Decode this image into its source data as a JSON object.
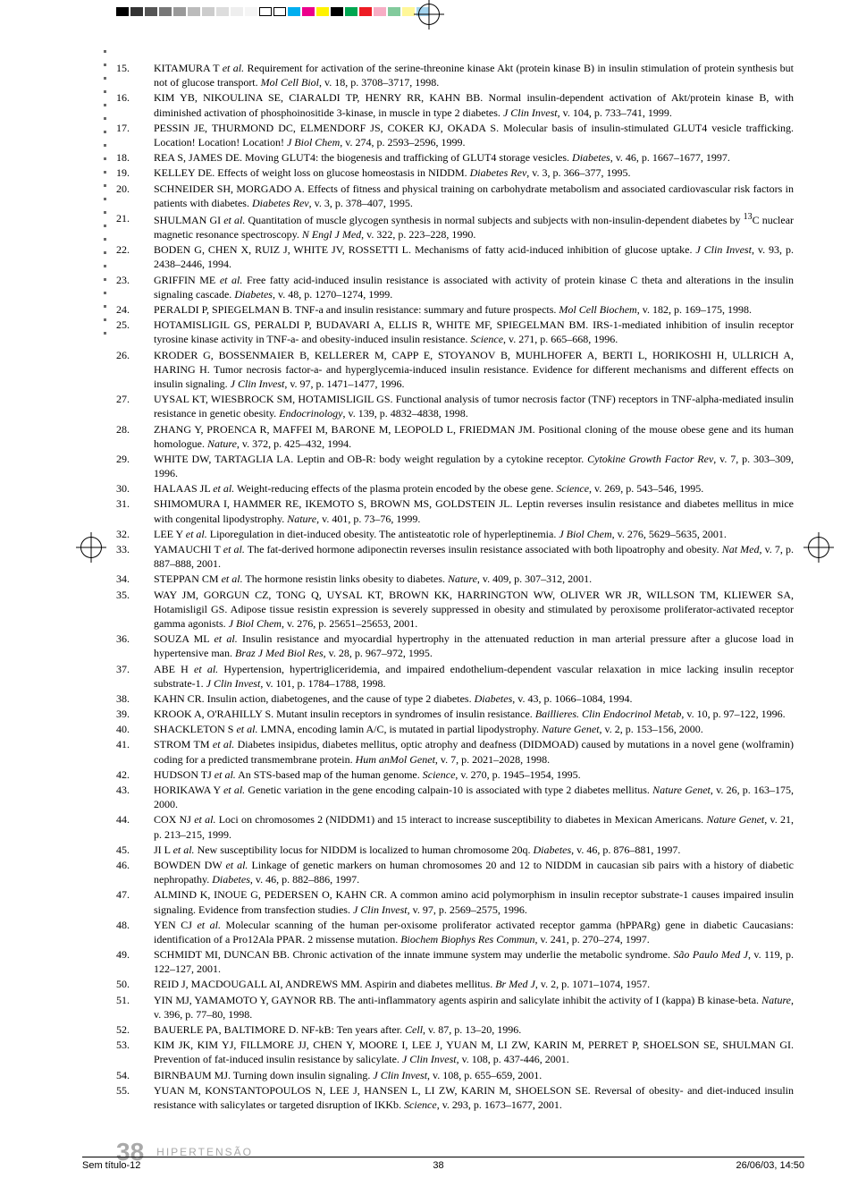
{
  "crop_swatches": [
    "#000000",
    "#333333",
    "#555555",
    "#777777",
    "#999999",
    "#bbbbbb",
    "#cccccc",
    "#dddddd",
    "#eeeeee",
    "#f5f5f5",
    "#ffffff",
    "#ffffff",
    "#00aeef",
    "#ec008c",
    "#fff200",
    "#000000",
    "#00a651",
    "#ed1c24",
    "#f7adc4",
    "#82ca9c",
    "#fff799",
    "#a3d4ef"
  ],
  "left_dot_count": 22,
  "references": [
    {
      "n": "15.",
      "html": "KITAMURA T <em>et al.</em> Requirement for activation of the serine-threonine kinase Akt (protein kinase B) in insulin stimulation of protein synthesis but not of glucose transport. <em>Mol Cell Biol</em>, v. 18, p. 3708–3717, 1998.",
      "indent": true
    },
    {
      "n": "16.",
      "html": "KIM YB, NIKOULINA SE, CIARALDI TP, HENRY RR, KAHN BB. Normal insulin-dependent activation of Akt/protein kinase B, with diminished activation of phosphoinositide 3-kinase, in muscle in type 2 diabetes. <em>J Clin Invest</em>, v. 104, p. 733–741, 1999.",
      "indent": true
    },
    {
      "n": "17.",
      "html": "PESSIN JE, THURMOND DC, ELMENDORF JS, COKER KJ, OKADA S. Molecular basis of insulin-stimulated GLUT4 vesicle trafficking. Location! Location! Location! <em>J Biol Chem</em>, v. 274, p. 2593–2596, 1999.",
      "indent": true
    },
    {
      "n": "18.",
      "html": "REA S, JAMES DE. Moving GLUT4: the biogenesis and trafficking of GLUT4 storage vesicles. <em>Diabetes</em>, v. 46, p. 1667–1677, 1997."
    },
    {
      "n": "19.",
      "html": "KELLEY DE. Effects of weight loss on glucose homeostasis in NIDDM. <em>Diabetes Rev</em>, v. 3, p. 366–377, 1995."
    },
    {
      "n": "20.",
      "html": "SCHNEIDER SH, MORGADO A. Effects of fitness and physical training on carbohydrate metabolism and associated cardiovascular risk factors in patients with diabetes. <em>Diabetes Rev</em>, v. 3, p. 378–407, 1995.",
      "indent": true
    },
    {
      "n": "21.",
      "html": "SHULMAN GI <em>et al.</em> Quantitation of muscle glycogen synthesis in normal subjects and subjects with non-insulin-dependent diabetes by <sup>13</sup>C nuclear magnetic resonance spectroscopy. <em>N Engl J Med</em>, v. 322, p. 223–228, 1990.",
      "indent": true
    },
    {
      "n": "22.",
      "html": "BODEN G, CHEN X, RUIZ J, WHITE JV, ROSSETTI L. Mechanisms of fatty acid-induced inhibition of glucose uptake. <em>J Clin Invest</em>, v. 93, p. 2438–2446, 1994.",
      "indent": true
    },
    {
      "n": "23.",
      "html": "GRIFFIN ME <em>et al.</em> Free fatty acid-induced insulin resistance is associated with activity of protein kinase C theta and alterations in the insulin signaling cascade. <em>Diabetes</em>, v. 48, p. 1270–1274, 1999.",
      "indent": true
    },
    {
      "n": "24.",
      "html": "PERALDI P, SPIEGELMAN B. TNF-a and insulin resistance: summary and future prospects. <em>Mol Cell Biochem</em>, v. 182, p. 169–175, 1998."
    },
    {
      "n": "25.",
      "html": "HOTAMISLIGIL GS, PERALDI P, BUDAVARI A, ELLIS R, WHITE MF, SPIEGELMAN BM. IRS-1-mediated inhibition of insulin receptor tyrosine kinase activity in TNF-a- and obesity-induced insulin resistance. <em>Science</em>, v. 271, p. 665–668, 1996.",
      "indent": true
    },
    {
      "n": "26.",
      "html": "KRODER G, BOSSENMAIER B, KELLERER M, CAPP E, STOYANOV B, MUHLHOFER A, BERTI L, HORIKOSHI H, ULLRICH A, HARING H. Tumor necrosis factor-a- and hyperglycemia-induced insulin resistance. Evidence for different mechanisms and different effects on insulin signaling. <em>J Clin Invest</em>, v. 97, p. 1471–1477, 1996.",
      "indent": true
    },
    {
      "n": "27.",
      "html": "UYSAL KT, WIESBROCK SM, HOTAMISLIGIL GS. Functional analysis of tumor necrosis factor (TNF) receptors in TNF-alpha-mediated insulin resistance in genetic obesity. <em>Endocrinology</em>, v. 139, p. 4832–4838, 1998.",
      "indent": true
    },
    {
      "n": "28.",
      "html": "ZHANG Y, PROENCA R, MAFFEI M, BARONE M, LEOPOLD L, FRIEDMAN JM. Positional cloning of the mouse obese gene and its human homologue. <em>Nature</em>, v. 372, p. 425–432, 1994.",
      "indent": true
    },
    {
      "n": "29.",
      "html": "WHITE DW, TARTAGLIA LA. Leptin and OB-R: body weight regulation by a cytokine receptor. <em>Cytokine Growth Factor Rev</em>, v. 7, p. 303–309, 1996.",
      "indent": true
    },
    {
      "n": "30.",
      "html": "HALAAS JL <em>et al.</em> Weight-reducing effects of the plasma protein encoded by the obese gene. <em>Science</em>, v. 269, p. 543–546, 1995."
    },
    {
      "n": "31.",
      "html": "SHIMOMURA I, HAMMER RE, IKEMOTO S, BROWN MS, GOLDSTEIN JL. Leptin reverses insulin resistance and diabetes mellitus in mice with congenital lipodystrophy. <em>Nature</em>, v. 401, p. 73–76, 1999.",
      "indent": true
    },
    {
      "n": "32.",
      "html": "LEE Y <em>et al.</em> Liporegulation in diet-induced obesity. The antisteatotic role of hyperleptinemia. <em>J Biol Chem</em>, v. 276, 5629–5635, 2001."
    },
    {
      "n": "33.",
      "html": "YAMAUCHI T <em>et al.</em> The fat-derived hormone adiponectin reverses insulin resistance associated with both lipoatrophy and obesity. <em>Nat Med</em>, v. 7, p. 887–888, 2001.",
      "indent": true
    },
    {
      "n": "34.",
      "html": "STEPPAN CM <em>et al.</em> The hormone resistin links obesity to diabetes. <em>Nature</em>, v. 409, p. 307–312, 2001."
    },
    {
      "n": "35.",
      "html": "WAY JM, GORGUN CZ, TONG Q, UYSAL KT, BROWN KK, HARRINGTON WW, OLIVER WR JR, WILLSON TM, KLIEWER SA, Hotamisligil GS. Adipose tissue resistin expression is severely suppressed in obesity and stimulated by peroxisome proliferator-activated receptor gamma agonists. <em>J Biol Chem</em>, v. 276, p. 25651–25653, 2001.",
      "indent": true
    },
    {
      "n": "36.",
      "html": "SOUZA ML <em>et al.</em> Insulin resistance and myocardial hypertrophy in the attenuated reduction in man arterial pressure after a glucose load in hypertensive man. <em>Braz J Med Biol Res</em>, v. 28, p. 967–972, 1995.",
      "indent": true
    },
    {
      "n": "37.",
      "html": "ABE H <em>et al.</em> Hypertension, hypertrigliceridemia, and impaired endothelium-dependent vascular relaxation in mice lacking insulin receptor substrate-1. <em>J Clin Invest</em>, v. 101, p. 1784–1788, 1998.",
      "indent": true
    },
    {
      "n": "38.",
      "html": "KAHN CR. Insulin action, diabetogenes, and the cause of type 2 diabetes. <em>Diabetes</em>, v. 43, p. 1066–1084, 1994."
    },
    {
      "n": "39.",
      "html": "KROOK A, O'RAHILLY S. Mutant insulin receptors in syndromes of insulin resistance. <em>Baillieres. Clin Endocrinol Metab</em>, v. 10, p. 97–122, 1996.",
      "indent": true
    },
    {
      "n": "40.",
      "html": "SHACKLETON S <em>et al.</em> LMNA, encoding lamin A/C, is mutated in partial lipodystrophy. <em>Nature Genet</em>, v. 2, p. 153–156, 2000."
    },
    {
      "n": "41.",
      "html": "STROM TM <em>et al.</em> Diabetes insipidus, diabetes mellitus, optic atrophy and deafness (DIDMOAD) caused by mutations in a novel gene (wolframin) coding for a predicted transmembrane protein. <em>Hum anMol Genet</em>, v. 7, p. 2021–2028, 1998.",
      "indent": true
    },
    {
      "n": "42.",
      "html": "HUDSON TJ <em>et al.</em> An STS-based map of the human genome. <em>Science</em>, v. 270, p. 1945–1954, 1995."
    },
    {
      "n": "43.",
      "html": "HORIKAWA Y <em>et al.</em> Genetic variation in the gene encoding calpain-10 is associated with type 2 diabetes mellitus. <em>Nature Genet</em>, v. 26, p. 163–175, 2000.",
      "indent": true
    },
    {
      "n": "44.",
      "html": "COX NJ <em>et al.</em> Loci on chromosomes 2 (NIDDM1) and 15 interact to increase susceptibility to diabetes in Mexican Americans. <em>Nature Genet</em>, v. 21, p. 213–215, 1999.",
      "indent": true
    },
    {
      "n": "45.",
      "html": "JI L <em>et al.</em> New susceptibility locus for NIDDM is localized to human chromosome 20q. <em>Diabetes</em>, v. 46, p. 876–881, 1997."
    },
    {
      "n": "46.",
      "html": "BOWDEN DW <em>et al.</em> Linkage of genetic markers on human chromosomes 20 and 12 to NIDDM in caucasian sib pairs with a history of diabetic nephropathy. <em>Diabetes</em>, v. 46, p. 882–886, 1997.",
      "indent": true
    },
    {
      "n": "47.",
      "html": "ALMIND K, INOUE G, PEDERSEN O, KAHN CR. A common amino acid polymorphism in insulin receptor substrate-1 causes impaired insulin signaling. Evidence from transfection studies. <em>J Clin Invest</em>, v. 97, p. 2569–2575, 1996.",
      "indent": true
    },
    {
      "n": "48.",
      "html": "YEN CJ <em>et al.</em> Molecular scanning of the human per-oxisome proliferator activated receptor gamma (hPPARg) gene in diabetic Caucasians: identification of a Pro12Ala PPAR. 2 missense mutation. <em>Biochem Biophys Res Commun</em>, v. 241, p. 270–274, 1997.",
      "indent": true
    },
    {
      "n": "49.",
      "html": "SCHMIDT MI, DUNCAN BB. Chronic activation of the innate immune system may underlie the metabolic syndrome. <em>São Paulo Med J</em>, v. 119, p. 122–127, 2001.",
      "indent": true
    },
    {
      "n": "50.",
      "html": "REID J, MACDOUGALL AI, ANDREWS MM. Aspirin and diabetes mellitus. <em>Br Med J</em>, v. 2, p. 1071–1074, 1957."
    },
    {
      "n": "51.",
      "html": "YIN MJ, YAMAMOTO Y, GAYNOR RB. The anti-inflammatory agents aspirin and salicylate inhibit the activity of I (kappa) B kinase-beta. <em>Nature</em>, v. 396, p. 77–80, 1998.",
      "indent": true
    },
    {
      "n": "52.",
      "html": "BAUERLE PA, BALTIMORE D. NF-kB: Ten years after. <em>Cell</em>, v. 87, p. 13–20, 1996."
    },
    {
      "n": "53.",
      "html": "KIM JK, KIM YJ, FILLMORE JJ, CHEN Y, MOORE I, LEE J, YUAN M, LI ZW, KARIN M, PERRET P, SHOELSON SE, SHULMAN GI. Prevention of fat-induced insulin resistance by salicylate. <em>J Clin Invest</em>, v. 108, p. 437-446, 2001.",
      "indent": true
    },
    {
      "n": "54.",
      "html": "BIRNBAUM MJ. Turning down insulin signaling. <em>J Clin Invest</em>, v. 108, p. 655–659, 2001."
    },
    {
      "n": "55.",
      "html": "YUAN M, KONSTANTOPOULOS N, LEE J, HANSEN L, LI ZW, KARIN M, SHOELSON SE. Reversal of obesity- and diet-induced insulin resistance with salicylates or targeted disruption of IKKb. <em>Science</em>, v. 293, p. 1673–1677, 2001.",
      "indent": true
    }
  ],
  "footer": {
    "page": "38",
    "journal": "HIPERTENSÃO"
  },
  "bottom": {
    "file": "Sem título-12",
    "pg": "38",
    "date": "26/06/03, 14:50"
  }
}
